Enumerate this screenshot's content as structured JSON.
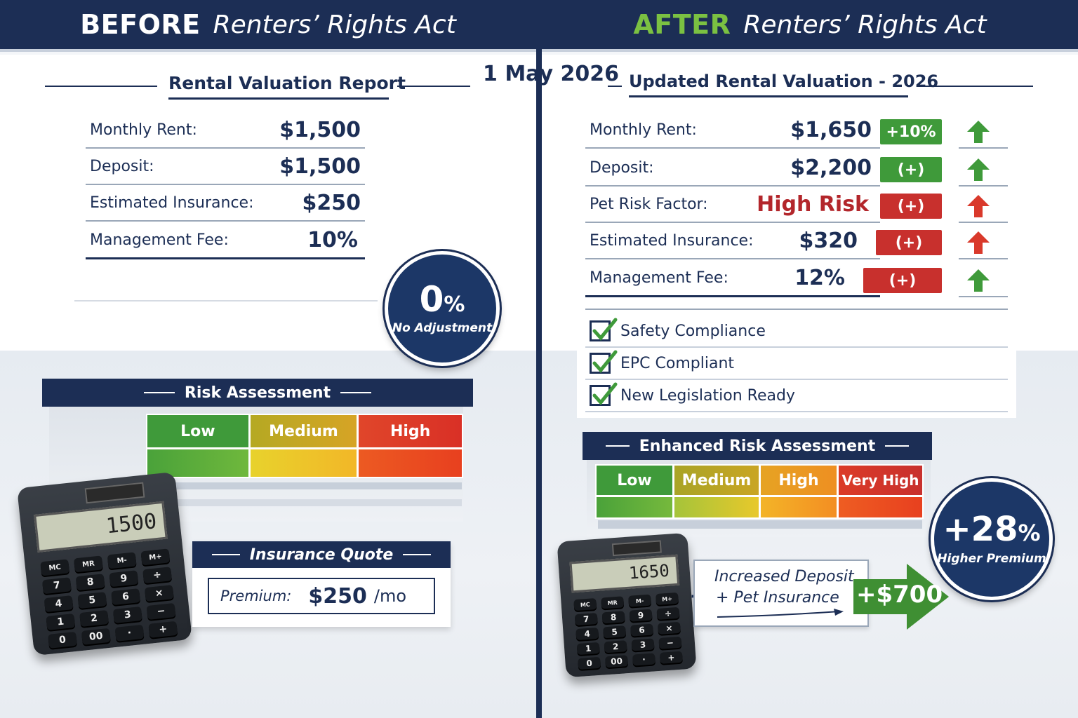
{
  "header": {
    "before_word": "BEFORE",
    "before_rest": "Renters’ Rights Act",
    "after_word": "AFTER",
    "after_rest": "Renters’ Rights Act"
  },
  "date": "1 May 2026",
  "before": {
    "report_title": "Rental Valuation Report",
    "rows": [
      {
        "label": "Monthly Rent:",
        "value": "$1,500"
      },
      {
        "label": "Deposit:",
        "value": "$1,500"
      },
      {
        "label": "Estimated Insurance:",
        "value": "$250"
      },
      {
        "label": "Management Fee:",
        "value": "10%"
      }
    ],
    "badge": {
      "value": "0",
      "unit": "%",
      "caption": "No Adjustment"
    },
    "risk": {
      "title": "Risk Assessment",
      "levels": [
        "Low",
        "Medium",
        "High"
      ]
    },
    "calculator_display": "1500",
    "insurance": {
      "title": "Insurance Quote",
      "label": "Premium:",
      "value": "$250",
      "unit": "/mo"
    }
  },
  "after": {
    "report_title": "Updated Rental Valuation - 2026",
    "rows": [
      {
        "label": "Monthly Rent:",
        "value": "$1,650",
        "tag": "+10%",
        "tag_color": "green",
        "arrow_color": "green"
      },
      {
        "label": "Deposit:",
        "value": "$2,200",
        "tag": "(+)",
        "tag_color": "green",
        "arrow_color": "green"
      },
      {
        "label": "Pet Risk Factor:",
        "value": "High Risk",
        "tag": "(+)",
        "tag_color": "red",
        "arrow_color": "red"
      },
      {
        "label": "Estimated Insurance:",
        "value": "$320",
        "tag": "(+)",
        "tag_color": "red",
        "arrow_color": "red"
      },
      {
        "label": "Management Fee:",
        "value": "12%",
        "tag": "(+)",
        "tag_color": "red",
        "arrow_color": "green"
      }
    ],
    "checklist": [
      "Safety Compliance",
      "EPC Compliant",
      "New Legislation Ready"
    ],
    "risk": {
      "title": "Enhanced Risk Assessment",
      "levels": [
        "Low",
        "Medium",
        "High",
        "Very High"
      ]
    },
    "calculator_display": "1650",
    "note": {
      "plus": "+",
      "line1": "Increased Deposit",
      "line2": "+ Pet Insurance"
    },
    "arrow_value": "+$700",
    "badge": {
      "value": "+28",
      "unit": "%",
      "caption": "Higher Premium"
    }
  },
  "calculator_keys": [
    [
      "MC",
      "MR",
      "M-",
      "M+"
    ],
    [
      "7",
      "8",
      "9",
      "÷"
    ],
    [
      "4",
      "5",
      "6",
      "×"
    ],
    [
      "1",
      "2",
      "3",
      "−"
    ],
    [
      "0",
      "00",
      "·",
      "+"
    ]
  ],
  "colors": {
    "navy": "#1c2e55",
    "green": "#3f9a3a",
    "red": "#c8302d",
    "accent_green": "#7bc142"
  }
}
